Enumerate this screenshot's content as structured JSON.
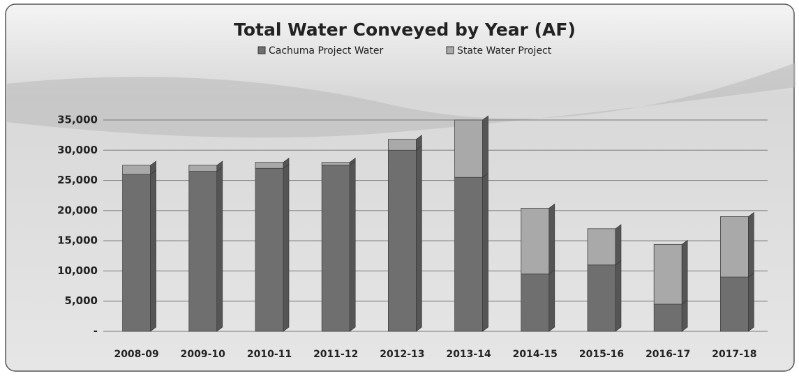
{
  "chart_data": {
    "type": "stacked_bar",
    "title": "Total Water Conveyed by Year (AF)",
    "categories": [
      "2008-09",
      "2009-10",
      "2010-11",
      "2011-12",
      "2012-13",
      "2013-14",
      "2014-15",
      "2015-16",
      "2016-17",
      "2017-18"
    ],
    "series": [
      {
        "name": "Cachuma Project Water",
        "color": "#6f6f6f",
        "values": [
          26000,
          26500,
          27000,
          27500,
          30000,
          25500,
          9500,
          11000,
          4500,
          9000
        ]
      },
      {
        "name": "State Water Project",
        "color": "#a9a9a9",
        "values": [
          1500,
          1000,
          1000,
          500,
          1800,
          9500,
          10900,
          6000,
          9900,
          10000
        ]
      }
    ],
    "ylim": [
      0,
      35000
    ],
    "yticks": [
      {
        "value": 0,
        "label": "-"
      },
      {
        "value": 5000,
        "label": "5,000"
      },
      {
        "value": 10000,
        "label": "10,000"
      },
      {
        "value": 15000,
        "label": "15,000"
      },
      {
        "value": 20000,
        "label": "20,000"
      },
      {
        "value": 25000,
        "label": "25,000"
      },
      {
        "value": 30000,
        "label": "30,000"
      },
      {
        "value": 35000,
        "label": "35,000"
      }
    ],
    "grid": true
  }
}
